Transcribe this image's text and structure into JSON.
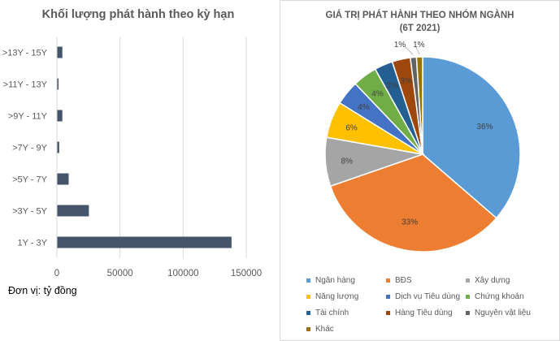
{
  "left_chart": {
    "title": "Khối lượng phát hành theo kỳ hạn",
    "unit_note": "Đơn vị: tỷ đồng"
  },
  "right_chart": {
    "title_line1": "GIÁ TRỊ PHÁT HÀNH THEO NHÓM NGÀNH",
    "title_line2": "(6T 2021)"
  },
  "chart_data": [
    {
      "type": "bar",
      "orientation": "horizontal",
      "title": "Khối lượng phát hành theo kỳ hạn",
      "categories": [
        ">13Y - 15Y",
        ">11Y - 13Y",
        ">9Y - 11Y",
        ">7Y - 9Y",
        ">5Y - 7Y",
        ">3Y - 5Y",
        "1Y - 3Y"
      ],
      "values": [
        4000,
        500,
        4000,
        1500,
        9000,
        25000,
        138000
      ],
      "xlim": [
        0,
        150000
      ],
      "xticks": [
        0,
        50000,
        100000,
        150000
      ],
      "grid": true,
      "bar_color": "#44546a"
    },
    {
      "type": "pie",
      "title": "GIÁ TRỊ PHÁT HÀNH THEO NHÓM NGÀNH (6T 2021)",
      "labels": [
        "Ngân hàng",
        "BĐS",
        "Xây dựng",
        "Năng lượng",
        "Dịch vụ Tiêu dùng",
        "Chứng khoán",
        "Tài chính",
        "Hàng Tiêu dùng",
        "Nguyên vật liệu",
        "Khác"
      ],
      "values": [
        36,
        33,
        8,
        6,
        4,
        4,
        3,
        3,
        1,
        1
      ],
      "value_labels": [
        "36%",
        "33%",
        "8%",
        "6%",
        "4%",
        "4%",
        "3%",
        "3%",
        "1%",
        "1%"
      ],
      "colors": [
        "#5b9bd5",
        "#ed7d31",
        "#a5a5a5",
        "#ffc000",
        "#4472c4",
        "#70ad47",
        "#255e91",
        "#9e480e",
        "#636363",
        "#997300"
      ],
      "legend_position": "bottom"
    }
  ]
}
